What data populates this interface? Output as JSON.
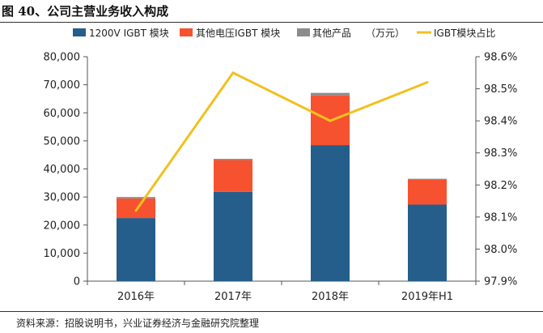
{
  "figure_title": "图 40、公司主营业务收入构成",
  "source_note": "资料来源：招股说明书，兴业证券经济与金融研究院整理",
  "unit_note": "（万元）",
  "colors": {
    "series_1200v": "#255e8a",
    "series_other_hv": "#f65230",
    "series_other_products": "#8c8c8c",
    "series_ratio_line": "#f2c01e",
    "axis": "#555555"
  },
  "chart_data": {
    "type": "bar",
    "stacked": true,
    "title": "公司主营业务收入构成",
    "categories": [
      "2016年",
      "2017年",
      "2018年",
      "2019年H1"
    ],
    "series": [
      {
        "name": "1200V IGBT 模块",
        "axis": "left",
        "values": [
          22500,
          31800,
          48500,
          27300
        ]
      },
      {
        "name": "其他电压IGBT 模块",
        "axis": "left",
        "values": [
          7000,
          11400,
          17700,
          8800
        ]
      },
      {
        "name": "其他产品",
        "axis": "left",
        "values": [
          500,
          400,
          900,
          400
        ]
      },
      {
        "name": "IGBT模块占比",
        "axis": "right",
        "type": "line",
        "values": [
          98.12,
          98.55,
          98.4,
          98.52
        ]
      }
    ],
    "left_axis": {
      "min": 0,
      "max": 80000,
      "step": 10000,
      "tick_labels": [
        "0",
        "10,000",
        "20,000",
        "30,000",
        "40,000",
        "50,000",
        "60,000",
        "70,000",
        "80,000"
      ]
    },
    "right_axis": {
      "min": 97.9,
      "max": 98.6,
      "step": 0.1,
      "tick_labels": [
        "97.9%",
        "98.0%",
        "98.1%",
        "98.2%",
        "98.3%",
        "98.4%",
        "98.5%",
        "98.6%"
      ]
    },
    "legend_position": "top",
    "grid": false
  }
}
